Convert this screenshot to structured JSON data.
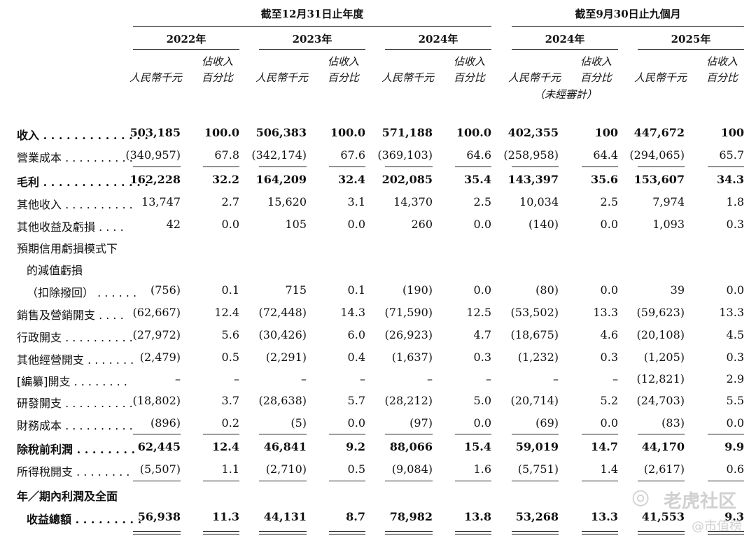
{
  "headers": {
    "group1": "截至12月31日止年度",
    "group2": "截至9月30日止九個月",
    "years": [
      "2022年",
      "2023年",
      "2024年",
      "2024年",
      "2025年"
    ],
    "unit_label": "人民幣千元",
    "pct_label_line1": "佔收入",
    "pct_label_line2": "百分比",
    "unaudited_note": "（未經審計）"
  },
  "rows": [
    {
      "label": "收入 . . . . . . . . . . . . . .",
      "bold": true,
      "values": [
        "503,185",
        "100.0",
        "506,383",
        "100.0",
        "571,188",
        "100.0",
        "402,355",
        "100",
        "447,672",
        "100"
      ]
    },
    {
      "label": "營業成本 . . . . . . . . . .",
      "bold": false,
      "values": [
        "(340,957)",
        "67.8",
        "(342,174)",
        "67.6",
        "(369,103)",
        "64.6",
        "(258,958)",
        "64.4",
        "(294,065)",
        "65.7"
      ]
    },
    {
      "label": "毛利 . . . . . . . . . . . . . .",
      "bold": true,
      "values": [
        "162,228",
        "32.2",
        "164,209",
        "32.4",
        "202,085",
        "35.4",
        "143,397",
        "35.6",
        "153,607",
        "34.3"
      ]
    },
    {
      "label": "其他收入 . . . . . . . . . .",
      "bold": false,
      "values": [
        "13,747",
        "2.7",
        "15,620",
        "3.1",
        "14,370",
        "2.5",
        "10,034",
        "2.5",
        "7,974",
        "1.8"
      ]
    },
    {
      "label": "其他收益及虧損 . . . .",
      "bold": false,
      "values": [
        "42",
        "0.0",
        "105",
        "0.0",
        "260",
        "0.0",
        "(140)",
        "0.0",
        "1,093",
        "0.3"
      ]
    },
    {
      "label": "預期信用虧損模式下",
      "bold": false,
      "values": []
    },
    {
      "label": "的減值虧損",
      "bold": false,
      "indent": true,
      "values": []
    },
    {
      "label": "（扣除撥回） . . . . . .",
      "bold": false,
      "indent": true,
      "values": [
        "(756)",
        "0.1",
        "715",
        "0.1",
        "(190)",
        "0.0",
        "(80)",
        "0.0",
        "39",
        "0.0"
      ]
    },
    {
      "label": "銷售及營銷開支 . . . .",
      "bold": false,
      "values": [
        "(62,667)",
        "12.4",
        "(72,448)",
        "14.3",
        "(71,590)",
        "12.5",
        "(53,502)",
        "13.3",
        "(59,623)",
        "13.3"
      ]
    },
    {
      "label": "行政開支 . . . . . . . . . .",
      "bold": false,
      "values": [
        "(27,972)",
        "5.6",
        "(30,426)",
        "6.0",
        "(26,923)",
        "4.7",
        "(18,675)",
        "4.6",
        "(20,108)",
        "4.5"
      ]
    },
    {
      "label": "其他經營開支 . . . . . . .",
      "bold": false,
      "values": [
        "(2,479)",
        "0.5",
        "(2,291)",
        "0.4",
        "(1,637)",
        "0.3",
        "(1,232)",
        "0.3",
        "(1,205)",
        "0.3"
      ]
    },
    {
      "label": "[編纂]開支 . . . . . . . .",
      "bold": false,
      "values": [
        "–",
        "–",
        "–",
        "–",
        "–",
        "–",
        "–",
        "–",
        "(12,821)",
        "2.9"
      ]
    },
    {
      "label": "研發開支 . . . . . . . . . .",
      "bold": false,
      "values": [
        "(18,802)",
        "3.7",
        "(28,638)",
        "5.7",
        "(28,212)",
        "5.0",
        "(20,714)",
        "5.2",
        "(24,703)",
        "5.5"
      ]
    },
    {
      "label": "財務成本 . . . . . . . . . .",
      "bold": false,
      "values": [
        "(896)",
        "0.2",
        "(5)",
        "0.0",
        "(97)",
        "0.0",
        "(69)",
        "0.0",
        "(83)",
        "0.0"
      ]
    },
    {
      "label": "除稅前利潤 . . . . . . . .",
      "bold": true,
      "values": [
        "62,445",
        "12.4",
        "46,841",
        "9.2",
        "88,066",
        "15.4",
        "59,019",
        "14.7",
        "44,170",
        "9.9"
      ]
    },
    {
      "label": "所得稅開支 . . . . . . . .",
      "bold": false,
      "values": [
        "(5,507)",
        "1.1",
        "(2,710)",
        "0.5",
        "(9,084)",
        "1.6",
        "(5,751)",
        "1.4",
        "(2,617)",
        "0.6"
      ]
    },
    {
      "label": "年／期內利潤及全面",
      "bold": true,
      "values": []
    },
    {
      "label": "收益總額 . . . . . . . . .",
      "bold": true,
      "indent": true,
      "values": [
        "56,938",
        "11.3",
        "44,131",
        "8.7",
        "78,982",
        "13.8",
        "53,268",
        "13.3",
        "41,553",
        "9.3"
      ]
    }
  ],
  "watermark": {
    "brand": "老虎社区",
    "handle": "@市值榜"
  }
}
